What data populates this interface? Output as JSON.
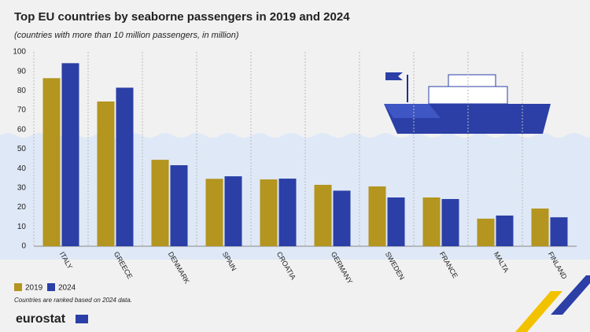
{
  "chart_data": {
    "type": "bar",
    "title": "Top EU countries by seaborne passengers in 2019 and 2024",
    "subtitle": "(countries with more than 10 million passengers, in million)",
    "categories": [
      "ITALY",
      "GREECE",
      "DENMARK",
      "SPAIN",
      "CROATIA",
      "GERMANY",
      "SWEDEN",
      "FRANCE",
      "MALTA",
      "FINLAND"
    ],
    "series": [
      {
        "name": "2019",
        "color": "#b39520",
        "values": [
          86.5,
          74.5,
          44.5,
          34.7,
          34.4,
          31.6,
          30.8,
          25.1,
          14.2,
          19.4
        ]
      },
      {
        "name": "2024",
        "color": "#2b3fa6",
        "values": [
          94.2,
          81.6,
          41.7,
          36,
          34.8,
          28.6,
          25.1,
          24.3,
          15.8,
          14.9
        ]
      }
    ],
    "ylim": [
      0,
      100
    ],
    "yticks": [
      0,
      10,
      20,
      30,
      40,
      50,
      60,
      70,
      80,
      90,
      100
    ],
    "grid": true,
    "legend": "bottom-left",
    "note": "Countries are ranked based on 2024 data.",
    "source": "eurostat"
  }
}
